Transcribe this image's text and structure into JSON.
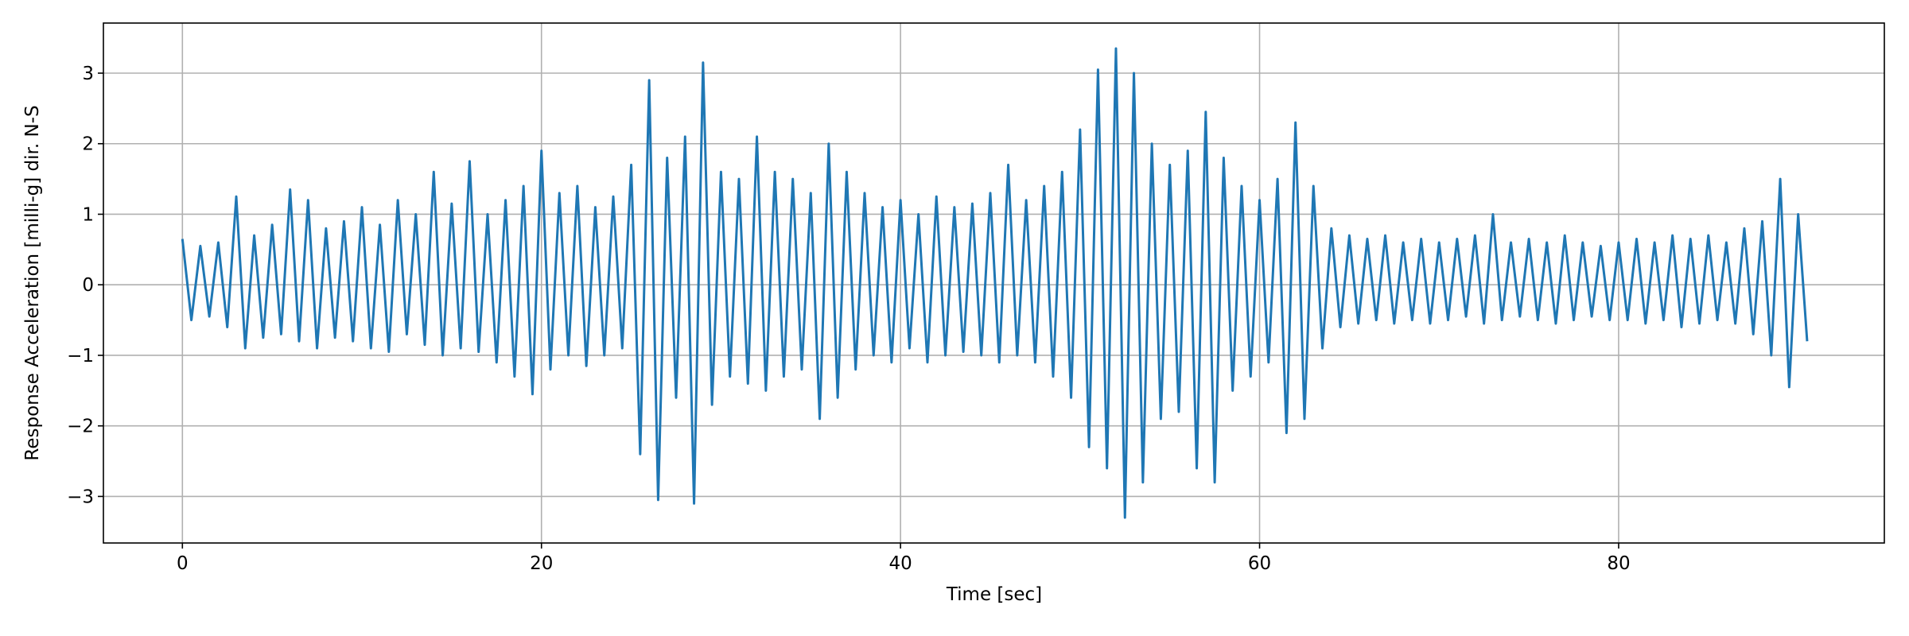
{
  "chart_data": {
    "type": "line",
    "xlabel": "Time [sec]",
    "ylabel": "Response Acceleration [milli-g] dir. N-S",
    "xlim": [
      -4.4,
      94.8
    ],
    "ylim": [
      -3.66,
      3.71
    ],
    "xticks": [
      0,
      20,
      40,
      60,
      80
    ],
    "yticks": [
      {
        "value": -3,
        "label": "−3"
      },
      {
        "value": -2,
        "label": "−2"
      },
      {
        "value": -1,
        "label": "−1"
      },
      0,
      1,
      2,
      3
    ],
    "grid": true,
    "series": [
      {
        "color": "#1f77b4",
        "x": [
          0,
          0.5,
          1,
          1.5,
          2,
          2.5,
          3,
          3.5,
          4,
          4.5,
          5,
          5.5,
          6,
          6.5,
          7,
          7.5,
          8,
          8.5,
          9,
          9.5,
          10,
          10.5,
          11,
          11.5,
          12,
          12.5,
          13,
          13.5,
          14,
          14.5,
          15,
          15.5,
          16,
          16.5,
          17,
          17.5,
          18,
          18.5,
          19,
          19.5,
          20,
          20.5,
          21,
          21.5,
          22,
          22.5,
          23,
          23.5,
          24,
          24.5,
          25,
          25.5,
          26,
          26.5,
          27,
          27.5,
          28,
          28.5,
          29,
          29.5,
          30,
          30.5,
          31,
          31.5,
          32,
          32.5,
          33,
          33.5,
          34,
          34.5,
          35,
          35.5,
          36,
          36.5,
          37,
          37.5,
          38,
          38.5,
          39,
          39.5,
          40,
          40.5,
          41,
          41.5,
          42,
          42.5,
          43,
          43.5,
          44,
          44.5,
          45,
          45.5,
          46,
          46.5,
          47,
          47.5,
          48,
          48.5,
          49,
          49.5,
          50,
          50.5,
          51,
          51.5,
          52,
          52.5,
          53,
          53.5,
          54,
          54.5,
          55,
          55.5,
          56,
          56.5,
          57,
          57.5,
          58,
          58.5,
          59,
          59.5,
          60,
          60.5,
          61,
          61.5,
          62,
          62.5,
          63,
          63.5,
          64,
          64.5,
          65,
          65.5,
          66,
          66.5,
          67,
          67.5,
          68,
          68.5,
          69,
          69.5,
          70,
          70.5,
          71,
          71.5,
          72,
          72.5,
          73,
          73.5,
          74,
          74.5,
          75,
          75.5,
          76,
          76.5,
          77,
          77.5,
          78,
          78.5,
          79,
          79.5,
          80,
          80.5,
          81,
          81.5,
          82,
          82.5,
          83,
          83.5,
          84,
          84.5,
          85,
          85.5,
          86,
          86.5,
          87,
          87.5,
          88,
          88.5,
          89,
          89.5,
          90,
          90.5
        ],
        "values": [
          0.65,
          -0.5,
          0.55,
          -0.45,
          0.6,
          -0.6,
          1.25,
          -0.9,
          0.7,
          -0.75,
          0.85,
          -0.7,
          1.35,
          -0.8,
          1.2,
          -0.9,
          0.8,
          -0.75,
          0.9,
          -0.8,
          1.1,
          -0.9,
          0.85,
          -0.95,
          1.2,
          -0.7,
          1.0,
          -0.85,
          1.6,
          -1.0,
          1.15,
          -0.9,
          1.75,
          -0.95,
          1.0,
          -1.1,
          1.2,
          -1.3,
          1.4,
          -1.55,
          1.9,
          -1.2,
          1.3,
          -1.0,
          1.4,
          -1.15,
          1.1,
          -1.0,
          1.25,
          -0.9,
          1.7,
          -2.4,
          2.9,
          -3.05,
          1.8,
          -1.6,
          2.1,
          -3.1,
          3.15,
          -1.7,
          1.6,
          -1.3,
          1.5,
          -1.4,
          2.1,
          -1.5,
          1.6,
          -1.3,
          1.5,
          -1.2,
          1.3,
          -1.9,
          2.0,
          -1.6,
          1.6,
          -1.2,
          1.3,
          -1.0,
          1.1,
          -1.1,
          1.2,
          -0.9,
          1.0,
          -1.1,
          1.25,
          -1.0,
          1.1,
          -0.95,
          1.15,
          -1.0,
          1.3,
          -1.1,
          1.7,
          -1.0,
          1.2,
          -1.1,
          1.4,
          -1.3,
          1.6,
          -1.6,
          2.2,
          -2.3,
          3.05,
          -2.6,
          3.35,
          -3.3,
          3.0,
          -2.8,
          2.0,
          -1.9,
          1.7,
          -1.8,
          1.9,
          -2.6,
          2.45,
          -2.8,
          1.8,
          -1.5,
          1.4,
          -1.3,
          1.2,
          -1.1,
          1.5,
          -2.1,
          2.3,
          -1.9,
          1.4,
          -0.9,
          0.8,
          -0.6,
          0.7,
          -0.55,
          0.65,
          -0.5,
          0.7,
          -0.55,
          0.6,
          -0.5,
          0.65,
          -0.55,
          0.6,
          -0.5,
          0.65,
          -0.45,
          0.7,
          -0.55,
          1.0,
          -0.5,
          0.6,
          -0.45,
          0.65,
          -0.5,
          0.6,
          -0.55,
          0.7,
          -0.5,
          0.6,
          -0.45,
          0.55,
          -0.5,
          0.6,
          -0.5,
          0.65,
          -0.55,
          0.6,
          -0.5,
          0.7,
          -0.6,
          0.65,
          -0.55,
          0.7,
          -0.5,
          0.6,
          -0.55,
          0.8,
          -0.7,
          0.9,
          -1.0,
          1.5,
          -1.45,
          1.0,
          -0.8
        ]
      }
    ]
  }
}
